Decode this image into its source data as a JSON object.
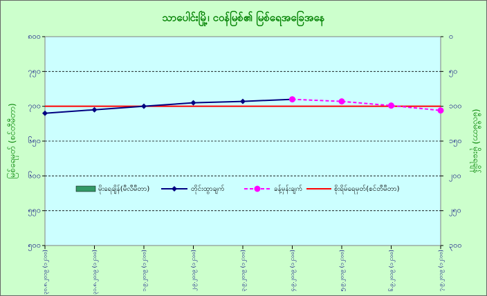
{
  "chart_data": {
    "type": "line",
    "title": "သာပေါင်းမြို့၊ ငဝန်မြစ်၏ မြစ်ရေအခြေအနေ",
    "y_label": "မြစ်ရေမှတ် (စင်တီမီတာ)",
    "y2_label": "(မီလီမီတာ) မိုးရေချိန်",
    "categories": [
      "၃၀.၈.၂၀၁၉ (၁၂:၀၀)",
      "၃၁.၈.၂၀၁၉ (၁၂:၀၀)",
      "၁.၉.၂၀၁၉ (၁၂:၀၀)",
      "၂.၉.၂၀၁၉ (၁၂:၀၀)",
      "၃.၉.၂၀၁၉ (၁၂:၀၀)",
      "၄.၉.၂၀၁၉ (၁၂:၀၀)",
      "၅.၉.၂၀၁၉ (၁၂:၀၀)",
      "၆.၉.၂၀၁၉ (၁၂:၀၀)",
      "၇.၉.၂၀၁၉ (၁၂:၀၀)"
    ],
    "series": [
      {
        "name": "မိုးရေချိန်(မီလီမီတာ)",
        "color": "#339966",
        "kind": "bar",
        "axis": "y2",
        "values": [
          null,
          null,
          null,
          null,
          null,
          null,
          null,
          null,
          null
        ]
      },
      {
        "name": "တိုင်းထွာချက်",
        "color": "#000080",
        "kind": "line",
        "marker": "diamond",
        "values": [
          690,
          695,
          700,
          705,
          707,
          710,
          null,
          null,
          null
        ]
      },
      {
        "name": "ခန့်မှန်းချက်",
        "color": "#ff00ff",
        "kind": "dashed",
        "marker": "circle",
        "values": [
          null,
          null,
          null,
          null,
          null,
          710,
          707,
          701,
          694
        ]
      }
    ],
    "warning": {
      "name": "စိုးရိမ်ရေမှတ်(စင်တီမီတာ)",
      "color": "#ff0000",
      "value": 700
    },
    "ylim": [
      500,
      800
    ],
    "yticks": [
      {
        "value": 500,
        "label": "၅၀၀"
      },
      {
        "value": 550,
        "label": "၅၅၀"
      },
      {
        "value": 600,
        "label": "၆၀၀"
      },
      {
        "value": 650,
        "label": "၆၅၀"
      },
      {
        "value": 700,
        "label": "၇၀၀"
      },
      {
        "value": 750,
        "label": "၇၅၀"
      },
      {
        "value": 800,
        "label": "၈၀၀"
      }
    ],
    "y2lim": [
      300,
      0
    ],
    "y2ticks": [
      {
        "value": 300,
        "label": "၃၀၀"
      },
      {
        "value": 250,
        "label": "၂၅၀"
      },
      {
        "value": 200,
        "label": "၂၀၀"
      },
      {
        "value": 150,
        "label": "၁၅၀"
      },
      {
        "value": 100,
        "label": "၁၀၀"
      },
      {
        "value": 50,
        "label": "၅၀"
      },
      {
        "value": 0,
        "label": "၀"
      }
    ],
    "grid": true
  }
}
